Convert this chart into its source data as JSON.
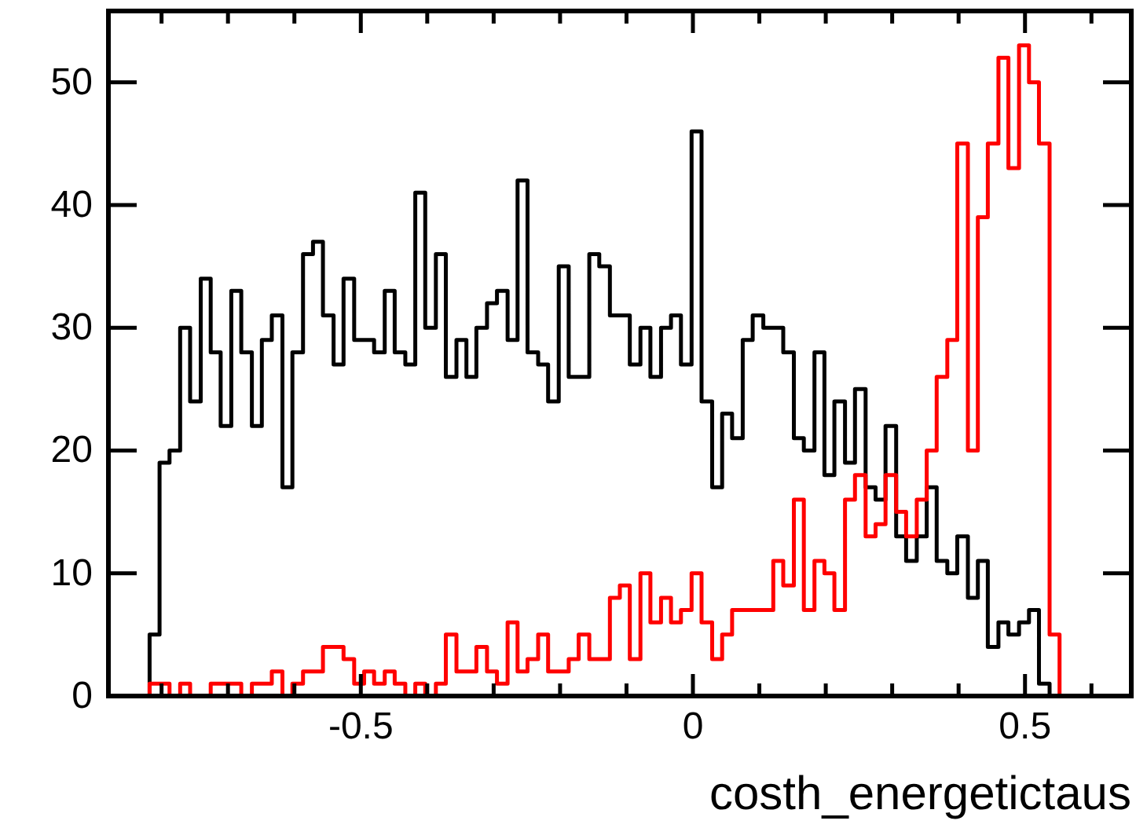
{
  "chart_data": {
    "type": "histogram",
    "xlabel": "costh_energetictaus",
    "bins": [
      -0.88,
      -0.865,
      -0.849,
      -0.834,
      -0.818,
      -0.803,
      -0.788,
      -0.772,
      -0.757,
      -0.741,
      -0.726,
      -0.711,
      -0.695,
      -0.68,
      -0.664,
      -0.649,
      -0.634,
      -0.618,
      -0.603,
      -0.587,
      -0.572,
      -0.557,
      -0.541,
      -0.526,
      -0.51,
      -0.495,
      -0.48,
      -0.464,
      -0.449,
      -0.433,
      -0.418,
      -0.403,
      -0.387,
      -0.372,
      -0.356,
      -0.341,
      -0.326,
      -0.31,
      -0.295,
      -0.279,
      -0.264,
      -0.249,
      -0.233,
      -0.218,
      -0.202,
      -0.187,
      -0.172,
      -0.156,
      -0.141,
      -0.125,
      -0.11,
      -0.095,
      -0.079,
      -0.064,
      -0.048,
      -0.033,
      -0.018,
      -0.002,
      0.013,
      0.029,
      0.044,
      0.059,
      0.075,
      0.09,
      0.106,
      0.121,
      0.136,
      0.152,
      0.167,
      0.183,
      0.198,
      0.213,
      0.229,
      0.244,
      0.26,
      0.275,
      0.29,
      0.306,
      0.321,
      0.337,
      0.352,
      0.367,
      0.383,
      0.398,
      0.414,
      0.429,
      0.444,
      0.46,
      0.475,
      0.491,
      0.506,
      0.521,
      0.537,
      0.552,
      0.568,
      0.583,
      0.598,
      0.614,
      0.629,
      0.645,
      0.66
    ],
    "series": [
      {
        "color": "#000000",
        "values": [
          0,
          0,
          0,
          0,
          5,
          19,
          20,
          30,
          24,
          34,
          28,
          22,
          33,
          28,
          22,
          29,
          31,
          17,
          28,
          36,
          37,
          31,
          27,
          34,
          29,
          29,
          28,
          33,
          28,
          27,
          41,
          30,
          36,
          26,
          29,
          26,
          30,
          32,
          33,
          29,
          42,
          28,
          27,
          24,
          35,
          26,
          26,
          36,
          35,
          31,
          31,
          27,
          30,
          26,
          30,
          31,
          27,
          46,
          24,
          17,
          23,
          21,
          29,
          31,
          30,
          30,
          28,
          21,
          20,
          28,
          18,
          24,
          19,
          25,
          17,
          16,
          22,
          13,
          11,
          13,
          17,
          11,
          10,
          13,
          8,
          11,
          4,
          6,
          5,
          6,
          7,
          1,
          0,
          0,
          0,
          0,
          0,
          0,
          0,
          0
        ]
      },
      {
        "color": "#ff0000",
        "values": [
          0,
          0,
          0,
          0,
          1,
          1,
          0,
          1,
          0,
          0,
          1,
          1,
          1,
          0,
          1,
          1,
          2,
          0,
          1,
          2,
          2,
          4,
          4,
          3,
          1,
          2,
          1,
          2,
          1,
          0,
          1,
          0,
          1,
          5,
          2,
          2,
          4,
          2,
          1,
          6,
          2,
          3,
          5,
          2,
          2,
          3,
          5,
          3,
          3,
          8,
          9,
          3,
          10,
          6,
          8,
          6,
          7,
          10,
          6,
          3,
          5,
          7,
          7,
          7,
          7,
          11,
          9,
          16,
          7,
          11,
          10,
          7,
          16,
          18,
          13,
          14,
          18,
          15,
          13,
          16,
          20,
          26,
          29,
          45,
          20,
          39,
          45,
          52,
          43,
          53,
          50,
          45,
          5,
          0,
          0,
          0,
          0,
          0,
          0,
          0
        ]
      }
    ],
    "xlim": [
      -0.88,
      0.66
    ],
    "xticks": [
      {
        "value": -0.8,
        "label": null
      },
      {
        "value": -0.7,
        "label": null
      },
      {
        "value": -0.6,
        "label": null
      },
      -0.5,
      {
        "value": -0.4,
        "label": null
      },
      {
        "value": -0.3,
        "label": null
      },
      {
        "value": -0.2,
        "label": null
      },
      {
        "value": -0.1,
        "label": null
      },
      0,
      {
        "value": 0.1,
        "label": null
      },
      {
        "value": 0.2,
        "label": null
      },
      {
        "value": 0.3,
        "label": null
      },
      {
        "value": 0.4,
        "label": null
      },
      0.5,
      {
        "value": 0.6,
        "label": null
      }
    ],
    "ylim": [
      0,
      55.8
    ],
    "yticks": [
      0,
      10,
      20,
      30,
      40,
      50
    ],
    "grid": false
  }
}
